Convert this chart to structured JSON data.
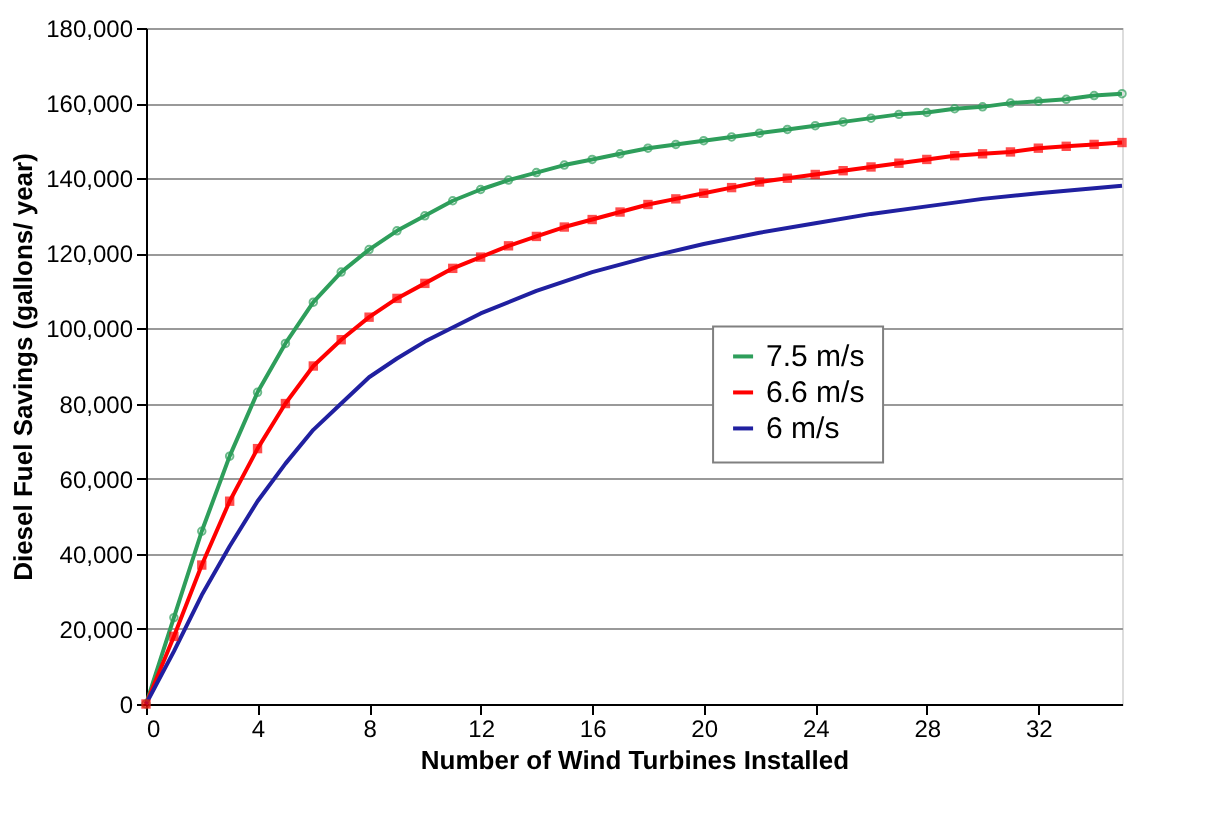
{
  "chart_data": {
    "type": "line",
    "xlabel": "Number of Wind Turbines Installed",
    "ylabel": "Diesel Fuel Savings (gallons/ year)",
    "xlim": [
      0,
      35
    ],
    "xticks": [
      0,
      4,
      8,
      12,
      16,
      20,
      24,
      28,
      32
    ],
    "ylim": [
      0,
      180000
    ],
    "yticks": [
      0,
      {
        "value": 20000,
        "label": "20,000"
      },
      {
        "value": 40000,
        "label": "40,000"
      },
      {
        "value": 60000,
        "label": "60,000"
      },
      {
        "value": 80000,
        "label": "80,000"
      },
      {
        "value": 100000,
        "label": "100,000"
      },
      {
        "value": 120000,
        "label": "120,000"
      },
      {
        "value": 140000,
        "label": "140,000"
      },
      {
        "value": 160000,
        "label": "160,000"
      },
      {
        "value": 180000,
        "label": "180,000"
      }
    ],
    "grid": "y",
    "legend": "center right",
    "line_style": "solid",
    "series": [
      {
        "name": "7.5 m/s",
        "color": "#2e9e5b",
        "marker": "circle",
        "x": [
          0,
          1,
          2,
          3,
          4,
          5,
          6,
          7,
          8,
          9,
          10,
          11,
          12,
          13,
          14,
          15,
          16,
          17,
          18,
          19,
          20,
          21,
          22,
          23,
          24,
          25,
          26,
          27,
          28,
          29,
          30,
          31,
          32,
          33,
          34,
          35
        ],
        "values": [
          0,
          23000,
          46000,
          66000,
          83000,
          96000,
          107000,
          115000,
          121000,
          126000,
          130000,
          134000,
          137000,
          139500,
          141500,
          143500,
          145000,
          146500,
          148000,
          149000,
          150000,
          151000,
          152000,
          153000,
          154000,
          155000,
          156000,
          157000,
          157500,
          158500,
          159000,
          160000,
          160500,
          161000,
          162000,
          162500
        ]
      },
      {
        "name": "6.6 m/s",
        "color": "#ff0000",
        "marker": "square",
        "x": [
          0,
          1,
          2,
          3,
          4,
          5,
          6,
          7,
          8,
          9,
          10,
          11,
          12,
          13,
          14,
          15,
          16,
          17,
          18,
          19,
          20,
          21,
          22,
          23,
          24,
          25,
          26,
          27,
          28,
          29,
          30,
          31,
          32,
          33,
          34,
          35
        ],
        "values": [
          0,
          18000,
          37000,
          54000,
          68000,
          80000,
          90000,
          97000,
          103000,
          108000,
          112000,
          116000,
          119000,
          122000,
          124500,
          127000,
          129000,
          131000,
          133000,
          134500,
          136000,
          137500,
          139000,
          140000,
          141000,
          142000,
          143000,
          144000,
          145000,
          146000,
          146500,
          147000,
          148000,
          148500,
          149000,
          149500
        ]
      },
      {
        "name": "6 m/s",
        "color": "#2020a0",
        "marker": "none",
        "x": [
          0,
          1,
          2,
          3,
          4,
          5,
          6,
          7,
          8,
          9,
          10,
          12,
          14,
          16,
          18,
          20,
          22,
          24,
          26,
          28,
          30,
          32,
          35
        ],
        "values": [
          0,
          14000,
          29000,
          42000,
          54000,
          64000,
          73000,
          80000,
          87000,
          92000,
          96500,
          104000,
          110000,
          115000,
          119000,
          122500,
          125500,
          128000,
          130500,
          132500,
          134500,
          136000,
          138000
        ]
      }
    ]
  }
}
